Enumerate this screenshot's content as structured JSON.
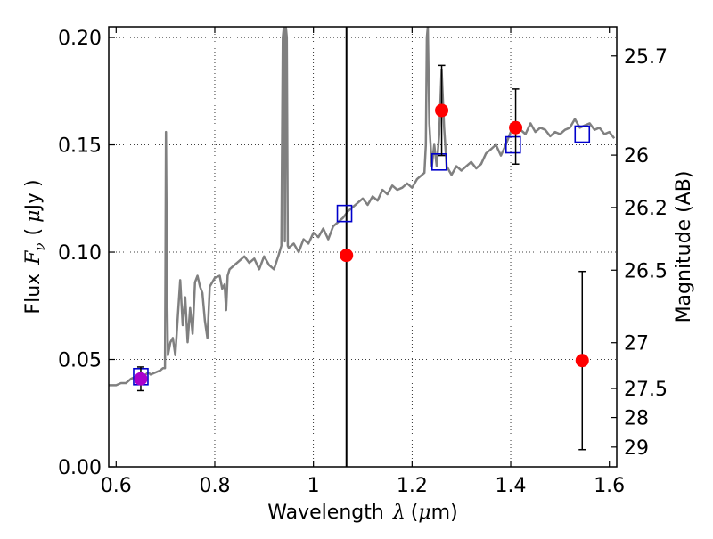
{
  "chart_data": {
    "type": "scatter",
    "xlabel": {
      "prefix": "Wavelength",
      "symbol": "λ",
      "unit_open": "(",
      "unit_mu": "μ",
      "unit_rest": "m)"
    },
    "ylabel": {
      "prefix": "Flux",
      "symbol": "F",
      "subscript": "ν",
      "unit_open": "(",
      "unit_mu": "μ",
      "unit_rest": "Jy",
      "unit_close": ")"
    },
    "y2label": "Magnitude (AB)",
    "xlim": [
      0.585,
      1.615
    ],
    "ylim": [
      0.0,
      0.205
    ],
    "x_ticks": [
      0.6,
      0.8,
      1.0,
      1.2,
      1.4,
      1.6
    ],
    "x_tick_labels": [
      "0.6",
      "0.8",
      "1",
      "1.2",
      "1.4",
      "1.6"
    ],
    "y_ticks": [
      0.0,
      0.05,
      0.1,
      0.15,
      0.2
    ],
    "y_tick_labels": [
      "0.00",
      "0.05",
      "0.10",
      "0.15",
      "0.20"
    ],
    "mag_ticks": [
      {
        "label": "25.7",
        "flux": 0.1914
      },
      {
        "label": "26",
        "flux": 0.1452
      },
      {
        "label": "26.2",
        "flux": 0.1208
      },
      {
        "label": "26.5",
        "flux": 0.0916
      },
      {
        "label": "27",
        "flux": 0.0578
      },
      {
        "label": "27.5",
        "flux": 0.0365
      },
      {
        "label": "28",
        "flux": 0.023
      },
      {
        "label": "29",
        "flux": 0.0092
      }
    ],
    "grid": true,
    "vertical_line_x": 1.067,
    "model_spectrum": {
      "color": "#808080",
      "x": [
        0.585,
        0.6,
        0.61,
        0.62,
        0.63,
        0.64,
        0.65,
        0.66,
        0.665,
        0.67,
        0.68,
        0.69,
        0.695,
        0.699,
        0.7,
        0.701,
        0.703,
        0.705,
        0.71,
        0.715,
        0.72,
        0.725,
        0.73,
        0.735,
        0.74,
        0.745,
        0.75,
        0.755,
        0.76,
        0.765,
        0.77,
        0.775,
        0.78,
        0.785,
        0.79,
        0.8,
        0.81,
        0.815,
        0.82,
        0.823,
        0.826,
        0.83,
        0.84,
        0.85,
        0.86,
        0.87,
        0.88,
        0.89,
        0.9,
        0.91,
        0.92,
        0.93,
        0.935,
        0.938,
        0.94,
        0.942,
        0.944,
        0.946,
        0.948,
        0.95,
        0.96,
        0.97,
        0.98,
        0.99,
        1.0,
        1.01,
        1.02,
        1.03,
        1.04,
        1.05,
        1.06,
        1.07,
        1.08,
        1.09,
        1.1,
        1.11,
        1.12,
        1.13,
        1.14,
        1.15,
        1.16,
        1.17,
        1.18,
        1.19,
        1.2,
        1.21,
        1.22,
        1.225,
        1.228,
        1.23,
        1.232,
        1.235,
        1.24,
        1.245,
        1.25,
        1.255,
        1.26,
        1.265,
        1.27,
        1.28,
        1.29,
        1.3,
        1.31,
        1.32,
        1.33,
        1.34,
        1.35,
        1.36,
        1.37,
        1.38,
        1.39,
        1.4,
        1.41,
        1.42,
        1.43,
        1.44,
        1.45,
        1.46,
        1.47,
        1.48,
        1.49,
        1.5,
        1.51,
        1.52,
        1.53,
        1.54,
        1.55,
        1.56,
        1.57,
        1.58,
        1.59,
        1.6,
        1.61
      ],
      "y": [
        0.038,
        0.038,
        0.039,
        0.039,
        0.041,
        0.042,
        0.042,
        0.043,
        0.044,
        0.043,
        0.044,
        0.045,
        0.046,
        0.046,
        0.09,
        0.156,
        0.09,
        0.052,
        0.058,
        0.06,
        0.052,
        0.07,
        0.087,
        0.066,
        0.079,
        0.058,
        0.074,
        0.062,
        0.086,
        0.089,
        0.084,
        0.081,
        0.068,
        0.06,
        0.084,
        0.088,
        0.089,
        0.083,
        0.085,
        0.073,
        0.089,
        0.092,
        0.094,
        0.096,
        0.098,
        0.095,
        0.097,
        0.092,
        0.098,
        0.094,
        0.092,
        0.099,
        0.103,
        0.2,
        0.205,
        0.105,
        0.205,
        0.2,
        0.103,
        0.102,
        0.104,
        0.1,
        0.106,
        0.104,
        0.109,
        0.107,
        0.111,
        0.106,
        0.112,
        0.114,
        0.116,
        0.119,
        0.121,
        0.123,
        0.125,
        0.122,
        0.126,
        0.124,
        0.129,
        0.127,
        0.131,
        0.129,
        0.13,
        0.132,
        0.13,
        0.134,
        0.136,
        0.137,
        0.15,
        0.2,
        0.205,
        0.16,
        0.14,
        0.15,
        0.14,
        0.155,
        0.185,
        0.158,
        0.14,
        0.136,
        0.14,
        0.138,
        0.14,
        0.142,
        0.139,
        0.141,
        0.146,
        0.148,
        0.15,
        0.145,
        0.15,
        0.156,
        0.158,
        0.157,
        0.155,
        0.16,
        0.156,
        0.158,
        0.157,
        0.154,
        0.156,
        0.155,
        0.157,
        0.158,
        0.162,
        0.158,
        0.159,
        0.16,
        0.157,
        0.158,
        0.155,
        0.156,
        0.153
      ]
    },
    "model_photometry": {
      "color": "#0000cc",
      "points": [
        {
          "x": 0.65,
          "y": 0.042
        },
        {
          "x": 1.063,
          "y": 0.118
        },
        {
          "x": 1.255,
          "y": 0.142
        },
        {
          "x": 1.405,
          "y": 0.15
        },
        {
          "x": 1.545,
          "y": 0.155
        }
      ]
    },
    "observed": {
      "color": "#ff0000",
      "points": [
        {
          "x": 1.067,
          "y": 0.0985
        },
        {
          "x": 1.26,
          "y": 0.166,
          "err_low": 0.145,
          "err_high": 0.187
        },
        {
          "x": 1.41,
          "y": 0.158,
          "err_low": 0.141,
          "err_high": 0.176
        },
        {
          "x": 1.545,
          "y": 0.0495,
          "err_low": 0.008,
          "err_high": 0.091
        }
      ]
    },
    "observed_optical": {
      "color": "#aa00cc",
      "points": [
        {
          "x": 0.65,
          "y": 0.041,
          "err_low": 0.0355,
          "err_high": 0.0465
        }
      ]
    }
  }
}
